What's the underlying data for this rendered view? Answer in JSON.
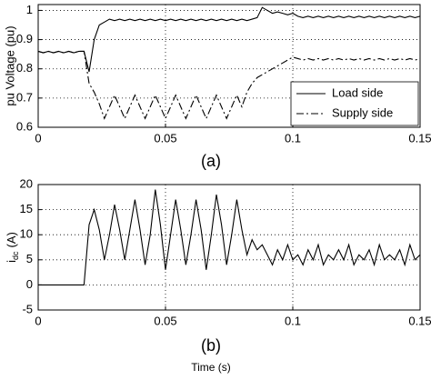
{
  "chart_data": [
    {
      "type": "line",
      "ylabel": "pu Voltage (pu)",
      "caption": "(a)",
      "x": [
        0,
        0.002,
        0.004,
        0.006,
        0.008,
        0.01,
        0.012,
        0.014,
        0.016,
        0.018,
        0.02,
        0.022,
        0.024,
        0.026,
        0.028,
        0.03,
        0.032,
        0.034,
        0.036,
        0.038,
        0.04,
        0.042,
        0.044,
        0.046,
        0.048,
        0.05,
        0.052,
        0.054,
        0.056,
        0.058,
        0.06,
        0.062,
        0.064,
        0.066,
        0.068,
        0.07,
        0.072,
        0.074,
        0.076,
        0.078,
        0.08,
        0.082,
        0.084,
        0.086,
        0.088,
        0.09,
        0.092,
        0.094,
        0.096,
        0.098,
        0.1,
        0.102,
        0.104,
        0.106,
        0.108,
        0.11,
        0.112,
        0.114,
        0.116,
        0.118,
        0.12,
        0.122,
        0.124,
        0.126,
        0.128,
        0.13,
        0.132,
        0.134,
        0.136,
        0.138,
        0.14,
        0.142,
        0.144,
        0.146,
        0.148,
        0.15
      ],
      "xlim": [
        0,
        0.15
      ],
      "xticks": [
        0,
        0.05,
        0.1,
        0.15
      ],
      "ylim": [
        0.6,
        1.02
      ],
      "yticks": [
        0.6,
        0.7,
        0.8,
        0.9,
        1
      ],
      "grid": true,
      "legend": "lower right",
      "series": [
        {
          "name": "Load side",
          "color": "#000000",
          "dash": "solid",
          "values": [
            0.86,
            0.855,
            0.86,
            0.855,
            0.86,
            0.855,
            0.86,
            0.855,
            0.86,
            0.86,
            0.79,
            0.9,
            0.95,
            0.96,
            0.97,
            0.965,
            0.97,
            0.965,
            0.97,
            0.965,
            0.97,
            0.965,
            0.97,
            0.965,
            0.97,
            0.965,
            0.97,
            0.965,
            0.97,
            0.965,
            0.97,
            0.965,
            0.97,
            0.965,
            0.97,
            0.965,
            0.97,
            0.965,
            0.97,
            0.965,
            0.97,
            0.965,
            0.97,
            0.975,
            1.01,
            1.0,
            0.99,
            0.995,
            0.99,
            0.985,
            0.99,
            0.98,
            0.975,
            0.98,
            0.975,
            0.98,
            0.975,
            0.98,
            0.975,
            0.98,
            0.975,
            0.98,
            0.975,
            0.98,
            0.975,
            0.98,
            0.975,
            0.98,
            0.975,
            0.98,
            0.975,
            0.98,
            0.975,
            0.98,
            0.975,
            0.98
          ]
        },
        {
          "name": "Supply side",
          "color": "#000000",
          "dash": "dashdot",
          "values": [
            0.86,
            0.855,
            0.86,
            0.855,
            0.86,
            0.855,
            0.86,
            0.855,
            0.86,
            0.86,
            0.75,
            0.72,
            0.68,
            0.63,
            0.67,
            0.71,
            0.67,
            0.63,
            0.67,
            0.71,
            0.67,
            0.63,
            0.67,
            0.71,
            0.67,
            0.63,
            0.67,
            0.71,
            0.67,
            0.63,
            0.67,
            0.71,
            0.67,
            0.63,
            0.67,
            0.71,
            0.67,
            0.63,
            0.67,
            0.71,
            0.67,
            0.72,
            0.75,
            0.77,
            0.78,
            0.79,
            0.8,
            0.81,
            0.82,
            0.83,
            0.84,
            0.835,
            0.83,
            0.835,
            0.83,
            0.835,
            0.83,
            0.835,
            0.83,
            0.835,
            0.83,
            0.835,
            0.83,
            0.835,
            0.83,
            0.835,
            0.83,
            0.835,
            0.83,
            0.835,
            0.83,
            0.835,
            0.83,
            0.835,
            0.83,
            0.835
          ]
        }
      ]
    },
    {
      "type": "line",
      "ylabel": "i",
      "ylabel_sub": "dc",
      "ylabel_unit": "(A)",
      "caption": "(b)",
      "xlabel": "Time (s)",
      "x": [
        0,
        0.002,
        0.004,
        0.006,
        0.008,
        0.01,
        0.012,
        0.014,
        0.016,
        0.018,
        0.02,
        0.022,
        0.024,
        0.026,
        0.028,
        0.03,
        0.032,
        0.034,
        0.036,
        0.038,
        0.04,
        0.042,
        0.044,
        0.046,
        0.048,
        0.05,
        0.052,
        0.054,
        0.056,
        0.058,
        0.06,
        0.062,
        0.064,
        0.066,
        0.068,
        0.07,
        0.072,
        0.074,
        0.076,
        0.078,
        0.08,
        0.082,
        0.084,
        0.086,
        0.088,
        0.09,
        0.092,
        0.094,
        0.096,
        0.098,
        0.1,
        0.102,
        0.104,
        0.106,
        0.108,
        0.11,
        0.112,
        0.114,
        0.116,
        0.118,
        0.12,
        0.122,
        0.124,
        0.126,
        0.128,
        0.13,
        0.132,
        0.134,
        0.136,
        0.138,
        0.14,
        0.142,
        0.144,
        0.146,
        0.148,
        0.15
      ],
      "xlim": [
        0,
        0.15
      ],
      "xticks": [
        0,
        0.05,
        0.1,
        0.15
      ],
      "ylim": [
        -5,
        20
      ],
      "yticks": [
        -5,
        0,
        5,
        10,
        15,
        20
      ],
      "grid": true,
      "series": [
        {
          "color": "#000000",
          "dash": "solid",
          "values": [
            0,
            0,
            0,
            0,
            0,
            0,
            0,
            0,
            0,
            0,
            12,
            15,
            11,
            5,
            10,
            16,
            11,
            5,
            11,
            17,
            11,
            4,
            10,
            19,
            12,
            3,
            10,
            17,
            11,
            4,
            10,
            17,
            11,
            3,
            10,
            18,
            12,
            4,
            10,
            17,
            11,
            6,
            9,
            7,
            8,
            6,
            4,
            7,
            5,
            8,
            5,
            6,
            4,
            7,
            5,
            8,
            4,
            6,
            5,
            7,
            5,
            8,
            4,
            6,
            5,
            7,
            4,
            8,
            5,
            6,
            5,
            7,
            4,
            8,
            5,
            6
          ]
        }
      ]
    }
  ]
}
